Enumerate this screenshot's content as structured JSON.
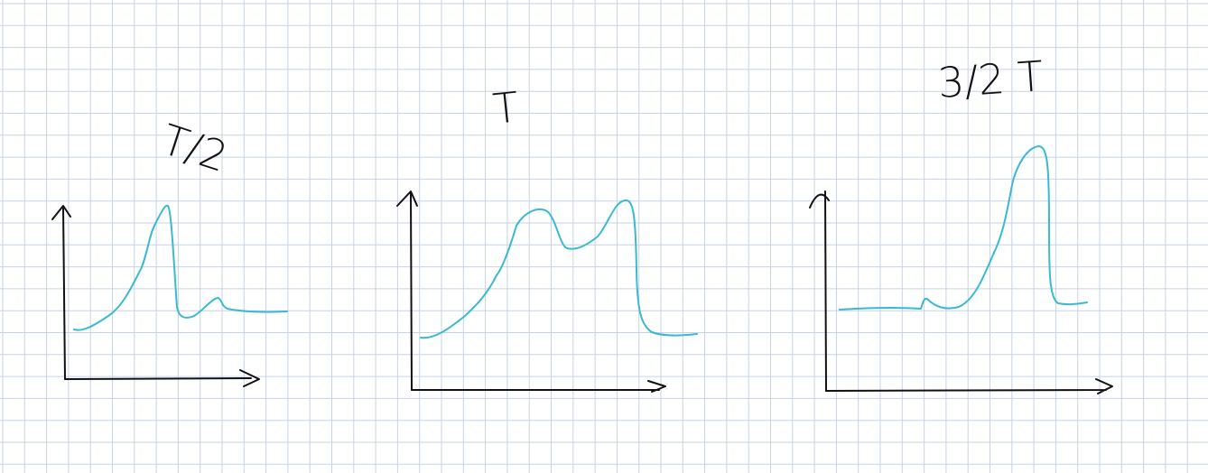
{
  "background": {
    "paper_color": "#ffffff",
    "grid_color": "#c7d3e6"
  },
  "colors": {
    "ink": "#111111",
    "curve": "#3bb9d3"
  },
  "panels": [
    {
      "label": "T/2"
    },
    {
      "label": "T"
    },
    {
      "label": "3/2 T"
    }
  ]
}
